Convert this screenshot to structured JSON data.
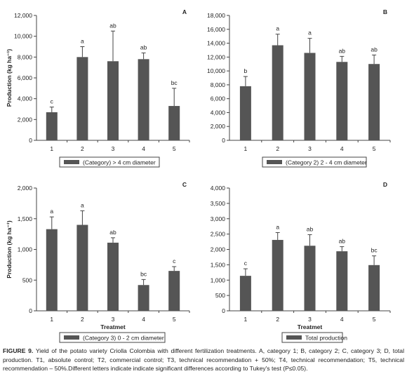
{
  "figure": {
    "caption_label": "FIGURE 9.",
    "caption_text": "Yield of the potato variety Criolla Colombia with different fertilization treatments. A, category 1; B, category 2; C, category 3; D, total production. T1, absolute control; T2, commercial control; T3, technical recommendation + 50%; T4, technical recommendation; T5, technical recommendation – 50%.Different letters indicate indicate significant differences according to Tukey's test (P≤0.05).",
    "bar_color": "#555555"
  },
  "chart_data": [
    {
      "type": "bar",
      "panel_letter": "A",
      "categories": [
        "1",
        "2",
        "3",
        "4",
        "5"
      ],
      "values": [
        2700,
        8000,
        7600,
        7800,
        3300
      ],
      "errors": [
        500,
        1000,
        2900,
        600,
        1700
      ],
      "letters": [
        "c",
        "a",
        "ab",
        "ab",
        "bc"
      ],
      "ylabel": "Production (kg ha⁻¹)",
      "xlabel": "",
      "ylim": [
        0,
        12000
      ],
      "yticks": [
        0,
        2000,
        4000,
        6000,
        8000,
        10000,
        12000
      ],
      "ytick_labels": [
        "0",
        "2,000",
        "4,000",
        "6,000",
        "8,000",
        "10,000",
        "12,000"
      ],
      "legend": "(Category) > 4 cm diameter",
      "grid": false
    },
    {
      "type": "bar",
      "panel_letter": "B",
      "categories": [
        "1",
        "2",
        "3",
        "4",
        "5"
      ],
      "values": [
        7800,
        13700,
        12600,
        11300,
        11000
      ],
      "errors": [
        1400,
        1600,
        2100,
        800,
        1300
      ],
      "letters": [
        "b",
        "a",
        "a",
        "ab",
        "ab"
      ],
      "ylabel": "",
      "xlabel": "",
      "ylim": [
        0,
        18000
      ],
      "yticks": [
        0,
        2000,
        4000,
        6000,
        8000,
        10000,
        12000,
        14000,
        16000,
        18000
      ],
      "ytick_labels": [
        "0",
        "2,000",
        "4,000",
        "6,000",
        "8,000",
        "10,000",
        "12,000",
        "14,000",
        "16,000",
        "18,000"
      ],
      "legend": "(Category 2) 2 - 4 cm diameter",
      "grid": false
    },
    {
      "type": "bar",
      "panel_letter": "C",
      "categories": [
        "1",
        "2",
        "3",
        "4",
        "5"
      ],
      "values": [
        1330,
        1400,
        1110,
        420,
        650
      ],
      "errors": [
        200,
        230,
        80,
        90,
        70
      ],
      "letters": [
        "a",
        "a",
        "ab",
        "bc",
        "c"
      ],
      "ylabel": "Production (kg ha⁻¹)",
      "xlabel": "Treatmet",
      "ylim": [
        0,
        2000
      ],
      "yticks": [
        0,
        500,
        1000,
        1500,
        2000
      ],
      "ytick_labels": [
        "0",
        "500",
        "1,000",
        "1,500",
        "2,000"
      ],
      "legend": "(Category 3) 0 - 2 cm diameter",
      "grid": false
    },
    {
      "type": "bar",
      "panel_letter": "D",
      "categories": [
        "1",
        "2",
        "3",
        "4",
        "5"
      ],
      "values": [
        1140,
        2310,
        2120,
        1940,
        1490
      ],
      "errors": [
        230,
        240,
        360,
        150,
        300
      ],
      "letters": [
        "c",
        "a",
        "ab",
        "ab",
        "bc"
      ],
      "ylabel": "",
      "xlabel": "Treatmet",
      "ylim": [
        0,
        4000
      ],
      "yticks": [
        0,
        500,
        1000,
        1500,
        2000,
        2500,
        3000,
        3500,
        4000
      ],
      "ytick_labels": [
        "0",
        "500",
        "1,000",
        "1,500",
        "2,000",
        "2,500",
        "3,000",
        "3,500",
        "4,000"
      ],
      "legend": "Total production",
      "grid": false
    }
  ]
}
